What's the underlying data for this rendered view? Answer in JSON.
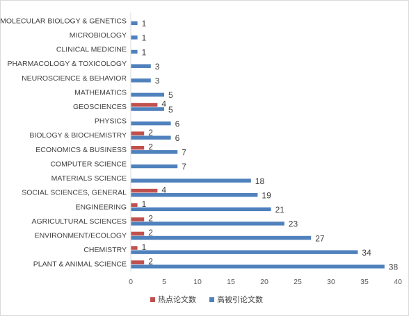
{
  "chart_data": {
    "type": "bar",
    "orientation": "horizontal",
    "categories": [
      "MOLECULAR BIOLOGY & GENETICS",
      "MICROBIOLOGY",
      "CLINICAL MEDICINE",
      "PHARMACOLOGY & TOXICOLOGY",
      "NEUROSCIENCE & BEHAVIOR",
      "MATHEMATICS",
      "GEOSCIENCES",
      "PHYSICS",
      "BIOLOGY & BIOCHEMISTRY",
      "ECONOMICS & BUSINESS",
      "COMPUTER SCIENCE",
      "MATERIALS SCIENCE",
      "SOCIAL SCIENCES, GENERAL",
      "ENGINEERING",
      "AGRICULTURAL SCIENCES",
      "ENVIRONMENT/ECOLOGY",
      "CHEMISTRY",
      "PLANT & ANIMAL SCIENCE"
    ],
    "series": [
      {
        "name": "热点论文数",
        "color": "#c0504d",
        "values": [
          null,
          null,
          null,
          null,
          null,
          null,
          4,
          null,
          2,
          2,
          null,
          null,
          4,
          1,
          2,
          2,
          1,
          2
        ]
      },
      {
        "name": "高被引论文数",
        "color": "#4f81bd",
        "values": [
          1,
          1,
          1,
          3,
          3,
          5,
          5,
          6,
          6,
          7,
          7,
          18,
          19,
          21,
          23,
          27,
          34,
          38
        ]
      }
    ],
    "xlim": [
      0,
      40
    ],
    "xticks": [
      "0",
      "5",
      "10",
      "15",
      "20",
      "25",
      "30",
      "35",
      "40"
    ],
    "xlabel": "",
    "ylabel": "",
    "grid": false,
    "legend": "bottom"
  }
}
